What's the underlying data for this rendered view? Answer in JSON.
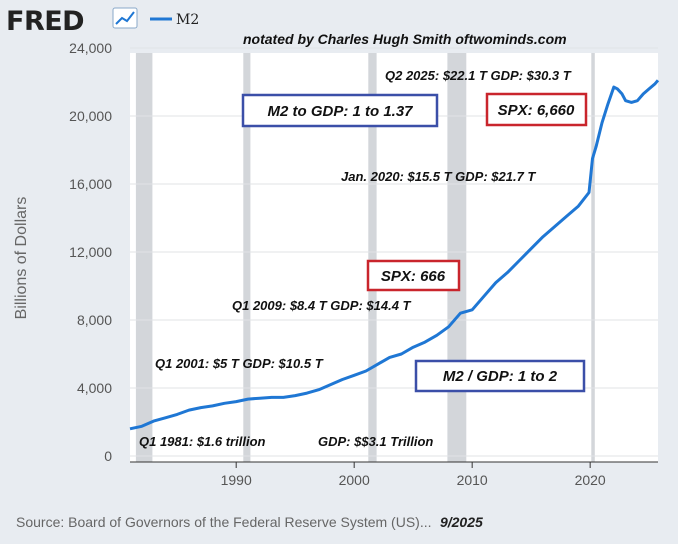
{
  "header": {
    "logo_text": "FRED",
    "series_label": "M2",
    "credit": "notated by Charles Hugh Smith  oftwominds.com"
  },
  "colors": {
    "series_line": "#1f77d4",
    "recession_band": "#d3d6da",
    "blue_box": "#3b4fa8",
    "red_box": "#c9252c"
  },
  "chart_data": {
    "type": "line",
    "title": "",
    "xlabel": "",
    "ylabel": "Billions of Dollars",
    "xlim": [
      1981,
      2025.75
    ],
    "ylim": [
      0,
      24000
    ],
    "x_ticks": [
      1990,
      2000,
      2010,
      2020
    ],
    "y_ticks": [
      0,
      4000,
      8000,
      12000,
      16000,
      20000,
      24000
    ],
    "y_tick_labels": [
      "0",
      "4,000",
      "8,000",
      "12,000",
      "16,000",
      "20,000",
      "24,000"
    ],
    "grid": true,
    "recessions": [
      [
        1981.5,
        1982.9
      ],
      [
        1990.6,
        1991.2
      ],
      [
        2001.2,
        2001.9
      ],
      [
        2007.9,
        2009.5
      ],
      [
        2020.1,
        2020.4
      ]
    ],
    "series": [
      {
        "name": "M2",
        "x": [
          1981,
          1982,
          1983,
          1984,
          1985,
          1986,
          1987,
          1988,
          1989,
          1990,
          1991,
          1992,
          1993,
          1994,
          1995,
          1996,
          1997,
          1998,
          1999,
          2000,
          2001,
          2002,
          2003,
          2004,
          2005,
          2006,
          2007,
          2008,
          2009,
          2010,
          2011,
          2012,
          2013,
          2014,
          2015,
          2016,
          2017,
          2018,
          2019,
          2019.9,
          2020.2,
          2020.5,
          2021,
          2021.5,
          2022,
          2022.3,
          2022.7,
          2023,
          2023.5,
          2024,
          2024.5,
          2025,
          2025.5,
          2025.75
        ],
        "values": [
          1600,
          1750,
          2050,
          2250,
          2450,
          2700,
          2850,
          2950,
          3100,
          3200,
          3350,
          3400,
          3450,
          3450,
          3550,
          3700,
          3900,
          4200,
          4500,
          4750,
          5000,
          5400,
          5800,
          6000,
          6400,
          6700,
          7100,
          7600,
          8400,
          8600,
          9400,
          10200,
          10800,
          11500,
          12200,
          12900,
          13500,
          14100,
          14700,
          15500,
          17500,
          18200,
          19600,
          20700,
          21700,
          21600,
          21300,
          20900,
          20800,
          20900,
          21300,
          21600,
          21900,
          22100
        ]
      }
    ],
    "annotations": {
      "q2_2025": "Q2 2025: $22.1 T  GDP: $30.3 T",
      "jan_2020": "Jan. 2020: $15.5 T  GDP: $21.7 T",
      "q1_2009": "Q1 2009: $8.4 T  GDP: $14.4 T",
      "q1_2001": "Q1 2001: $5 T   GDP: $10.5 T",
      "q1_1981": "Q1 1981: $1.6 trillion",
      "gdp_1981": "GDP: $$3.1 Trillion",
      "box_m2_gdp_recent": "M2 to GDP: 1 to 1.37",
      "box_spx_recent": "SPX: 6,660",
      "box_spx_2009": "SPX: 666",
      "box_m2_gdp_2001": "M2 / GDP: 1 to 2"
    }
  },
  "footer": {
    "source": "Source: Board of Governors of the Federal Reserve System (US)...",
    "date": "9/2025"
  }
}
